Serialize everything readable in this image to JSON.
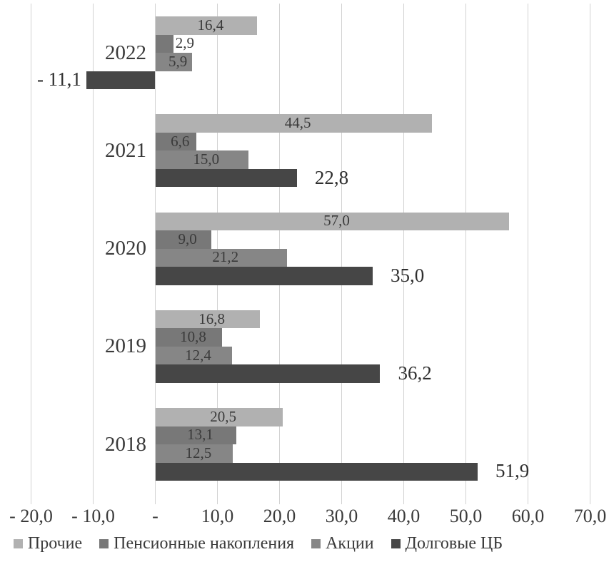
{
  "chart_data": {
    "type": "bar",
    "orientation": "horizontal",
    "title": "",
    "xlabel": "",
    "ylabel": "",
    "xlim": [
      -20,
      70
    ],
    "grid": true,
    "legend_position": "bottom",
    "decimal_separator": ",",
    "categories": [
      "2022",
      "2021",
      "2020",
      "2019",
      "2018"
    ],
    "x_ticks": [
      -20,
      -10,
      0,
      10,
      20,
      30,
      40,
      50,
      60,
      70
    ],
    "x_tick_labels": [
      "- 20,0",
      "- 10,0",
      "-",
      "10,0",
      "20,0",
      "30,0",
      "40,0",
      "50,0",
      "60,0",
      "70,0"
    ],
    "series": [
      {
        "name": "Прочие",
        "color": "#b1b1b1",
        "label_placement": "inside",
        "values": [
          16.4,
          44.5,
          57.0,
          16.8,
          20.5
        ],
        "labels": [
          "16,4",
          "44,5",
          "57,0",
          "16,8",
          "20,5"
        ]
      },
      {
        "name": "Пенсионные накопления",
        "color": "#787878",
        "label_placement": "inside",
        "values": [
          2.9,
          6.6,
          9.0,
          10.8,
          13.1
        ],
        "labels": [
          "2,9",
          "6,6",
          "9,0",
          "10,8",
          "13,1"
        ]
      },
      {
        "name": "Акции",
        "color": "#868686",
        "label_placement": "inside",
        "values": [
          5.9,
          15.0,
          21.2,
          12.4,
          12.5
        ],
        "labels": [
          "5,9",
          "15,0",
          "21,2",
          "12,4",
          "12,5"
        ]
      },
      {
        "name": "Долговые ЦБ",
        "color": "#464646",
        "label_placement": "outside",
        "values": [
          -11.1,
          22.8,
          35.0,
          36.2,
          51.9
        ],
        "labels": [
          "- 11,1",
          "22,8",
          "35,0",
          "36,2",
          "51,9"
        ]
      }
    ]
  }
}
